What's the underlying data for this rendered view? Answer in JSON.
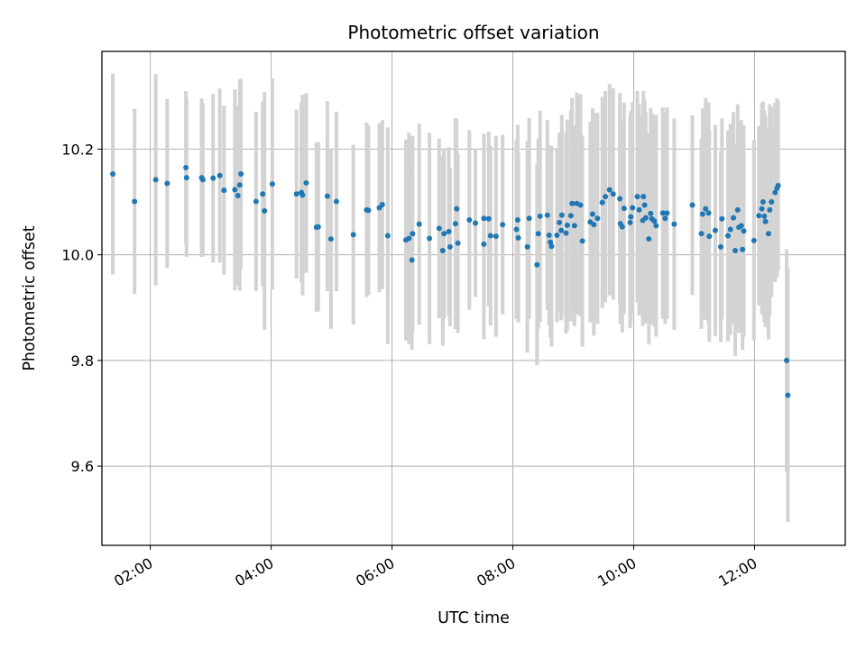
{
  "chart_data": {
    "type": "scatter",
    "title": "Photometric offset variation",
    "xlabel": "UTC time",
    "ylabel": "Photometric offset",
    "x_unit": "hours (UTC)",
    "xlim": [
      1.2,
      13.5
    ],
    "ylim": [
      9.45,
      10.385
    ],
    "grid": true,
    "x_ticks": [
      {
        "value": 2,
        "label": "02:00"
      },
      {
        "value": 4,
        "label": "04:00"
      },
      {
        "value": 6,
        "label": "06:00"
      },
      {
        "value": 8,
        "label": "08:00"
      },
      {
        "value": 10,
        "label": "10:00"
      },
      {
        "value": 12,
        "label": "12:00"
      }
    ],
    "y_ticks": [
      {
        "value": 9.6,
        "label": "9.6"
      },
      {
        "value": 9.8,
        "label": "9.8"
      },
      {
        "value": 10.0,
        "label": "10.0"
      },
      {
        "value": 10.2,
        "label": "10.2"
      }
    ],
    "marker_color": "#1f77b4",
    "errorbar_color": "#d3d3d3",
    "points": [
      [
        1.38,
        10.153,
        0.19
      ],
      [
        1.74,
        10.101,
        0.175
      ],
      [
        2.09,
        10.142,
        0.2
      ],
      [
        2.28,
        10.135,
        0.16
      ],
      [
        2.59,
        10.165,
        0.145
      ],
      [
        2.6,
        10.146,
        0.15
      ],
      [
        2.85,
        10.146,
        0.15
      ],
      [
        2.87,
        10.142,
        0.145
      ],
      [
        3.04,
        10.145,
        0.16
      ],
      [
        3.15,
        10.15,
        0.165
      ],
      [
        3.22,
        10.122,
        0.16
      ],
      [
        3.4,
        10.123,
        0.19
      ],
      [
        3.45,
        10.112,
        0.17
      ],
      [
        3.48,
        10.132,
        0.2
      ],
      [
        3.5,
        10.153,
        0.18
      ],
      [
        3.75,
        10.101,
        0.17
      ],
      [
        3.86,
        10.115,
        0.175
      ],
      [
        3.89,
        10.083,
        0.225
      ],
      [
        4.02,
        10.134,
        0.2
      ],
      [
        4.42,
        10.115,
        0.16
      ],
      [
        4.5,
        10.118,
        0.17
      ],
      [
        4.52,
        10.113,
        0.19
      ],
      [
        4.58,
        10.136,
        0.17
      ],
      [
        4.75,
        10.052,
        0.16
      ],
      [
        4.78,
        10.053,
        0.16
      ],
      [
        4.93,
        10.111,
        0.18
      ],
      [
        4.99,
        10.03,
        0.17
      ],
      [
        5.08,
        10.101,
        0.17
      ],
      [
        5.36,
        10.038,
        0.17
      ],
      [
        5.58,
        10.085,
        0.165
      ],
      [
        5.61,
        10.084,
        0.16
      ],
      [
        5.79,
        10.089,
        0.16
      ],
      [
        5.84,
        10.095,
        0.16
      ],
      [
        5.93,
        10.036,
        0.205
      ],
      [
        6.23,
        10.028,
        0.19
      ],
      [
        6.28,
        10.031,
        0.2
      ],
      [
        6.34,
        10.04,
        0.185
      ],
      [
        6.33,
        9.99,
        0.17
      ],
      [
        6.45,
        10.058,
        0.19
      ],
      [
        6.62,
        10.031,
        0.2
      ],
      [
        6.78,
        10.05,
        0.17
      ],
      [
        6.84,
        10.008,
        0.18
      ],
      [
        6.86,
        10.04,
        0.16
      ],
      [
        6.94,
        10.044,
        0.16
      ],
      [
        6.96,
        10.015,
        0.15
      ],
      [
        7.05,
        10.059,
        0.2
      ],
      [
        7.07,
        10.087,
        0.17
      ],
      [
        7.09,
        10.022,
        0.17
      ],
      [
        7.28,
        10.066,
        0.17
      ],
      [
        7.38,
        10.06,
        0.14
      ],
      [
        7.52,
        10.069,
        0.16
      ],
      [
        7.52,
        10.02,
        0.18
      ],
      [
        7.6,
        10.068,
        0.165
      ],
      [
        7.63,
        10.036,
        0.17
      ],
      [
        7.72,
        10.035,
        0.19
      ],
      [
        7.83,
        10.057,
        0.17
      ],
      [
        8.06,
        10.048,
        0.17
      ],
      [
        8.09,
        10.032,
        0.16
      ],
      [
        8.08,
        10.066,
        0.18
      ],
      [
        8.24,
        10.015,
        0.2
      ],
      [
        8.27,
        10.069,
        0.19
      ],
      [
        8.4,
        9.981,
        0.19
      ],
      [
        8.42,
        10.04,
        0.18
      ],
      [
        8.45,
        10.073,
        0.2
      ],
      [
        8.57,
        10.075,
        0.18
      ],
      [
        8.6,
        10.037,
        0.17
      ],
      [
        8.62,
        10.024,
        0.18
      ],
      [
        8.64,
        10.016,
        0.19
      ],
      [
        8.73,
        10.037,
        0.165
      ],
      [
        8.77,
        10.061,
        0.17
      ],
      [
        8.8,
        10.046,
        0.17
      ],
      [
        8.81,
        10.075,
        0.19
      ],
      [
        8.88,
        10.041,
        0.19
      ],
      [
        8.9,
        10.056,
        0.2
      ],
      [
        8.96,
        10.074,
        0.2
      ],
      [
        8.98,
        10.097,
        0.2
      ],
      [
        9.02,
        10.055,
        0.19
      ],
      [
        9.06,
        10.097,
        0.21
      ],
      [
        9.12,
        10.094,
        0.21
      ],
      [
        9.15,
        10.026,
        0.2
      ],
      [
        9.28,
        10.062,
        0.19
      ],
      [
        9.32,
        10.077,
        0.2
      ],
      [
        9.34,
        10.057,
        0.21
      ],
      [
        9.4,
        10.069,
        0.2
      ],
      [
        9.48,
        10.099,
        0.2
      ],
      [
        9.53,
        10.11,
        0.2
      ],
      [
        9.6,
        10.123,
        0.2
      ],
      [
        9.66,
        10.115,
        0.2
      ],
      [
        9.77,
        10.106,
        0.2
      ],
      [
        9.78,
        10.059,
        0.19
      ],
      [
        9.81,
        10.053,
        0.2
      ],
      [
        9.84,
        10.088,
        0.2
      ],
      [
        9.94,
        10.061,
        0.2
      ],
      [
        9.95,
        10.072,
        0.2
      ],
      [
        9.98,
        10.089,
        0.2
      ],
      [
        10.06,
        10.11,
        0.2
      ],
      [
        10.09,
        10.085,
        0.2
      ],
      [
        10.15,
        10.065,
        0.2
      ],
      [
        10.16,
        10.11,
        0.2
      ],
      [
        10.18,
        10.094,
        0.2
      ],
      [
        10.2,
        10.07,
        0.2
      ],
      [
        10.25,
        10.03,
        0.2
      ],
      [
        10.28,
        10.078,
        0.2
      ],
      [
        10.3,
        10.068,
        0.2
      ],
      [
        10.34,
        10.064,
        0.2
      ],
      [
        10.37,
        10.055,
        0.21
      ],
      [
        10.48,
        10.079,
        0.2
      ],
      [
        10.52,
        10.069,
        0.2
      ],
      [
        10.55,
        10.079,
        0.2
      ],
      [
        10.67,
        10.058,
        0.2
      ],
      [
        10.97,
        10.094,
        0.17
      ],
      [
        11.12,
        10.04,
        0.18
      ],
      [
        11.14,
        10.077,
        0.2
      ],
      [
        11.19,
        10.087,
        0.21
      ],
      [
        11.24,
        10.079,
        0.21
      ],
      [
        11.25,
        10.035,
        0.2
      ],
      [
        11.35,
        10.046,
        0.2
      ],
      [
        11.44,
        10.015,
        0.18
      ],
      [
        11.46,
        10.068,
        0.19
      ],
      [
        11.56,
        10.036,
        0.2
      ],
      [
        11.6,
        10.048,
        0.2
      ],
      [
        11.65,
        10.07,
        0.2
      ],
      [
        11.68,
        10.008,
        0.2
      ],
      [
        11.72,
        10.085,
        0.2
      ],
      [
        11.74,
        10.052,
        0.2
      ],
      [
        11.78,
        10.055,
        0.2
      ],
      [
        11.8,
        10.01,
        0.19
      ],
      [
        11.82,
        10.045,
        0.2
      ],
      [
        11.99,
        10.027,
        0.19
      ],
      [
        12.07,
        10.074,
        0.17
      ],
      [
        12.12,
        10.087,
        0.2
      ],
      [
        12.14,
        10.1,
        0.19
      ],
      [
        12.16,
        10.073,
        0.2
      ],
      [
        12.18,
        10.063,
        0.2
      ],
      [
        12.23,
        10.04,
        0.2
      ],
      [
        12.25,
        10.085,
        0.2
      ],
      [
        12.28,
        10.1,
        0.18
      ],
      [
        12.34,
        10.118,
        0.17
      ],
      [
        12.37,
        10.126,
        0.17
      ],
      [
        12.39,
        10.131,
        0.16
      ],
      [
        12.53,
        9.8,
        0.21
      ],
      [
        12.55,
        9.734,
        0.24
      ]
    ]
  }
}
